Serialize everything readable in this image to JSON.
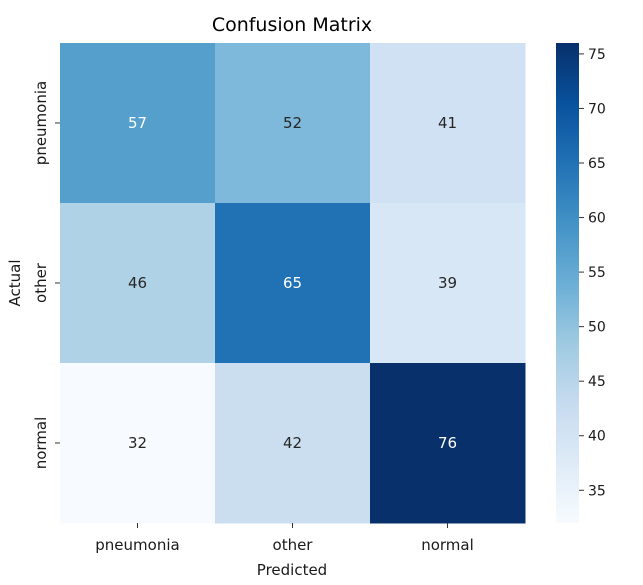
{
  "chart_data": {
    "type": "heatmap",
    "title": "Confusion Matrix",
    "xlabel": "Predicted",
    "ylabel": "Actual",
    "x_categories": [
      "pneumonia",
      "other",
      "normal"
    ],
    "y_categories": [
      "pneumonia",
      "other",
      "normal"
    ],
    "values": [
      [
        57,
        52,
        41
      ],
      [
        46,
        65,
        39
      ],
      [
        32,
        42,
        76
      ]
    ],
    "colormap": "Blues",
    "colorbar": {
      "min": 32,
      "max": 76,
      "ticks": [
        35,
        40,
        45,
        50,
        55,
        60,
        65,
        70,
        75
      ]
    },
    "grid": false,
    "legend": "colorbar-right"
  }
}
